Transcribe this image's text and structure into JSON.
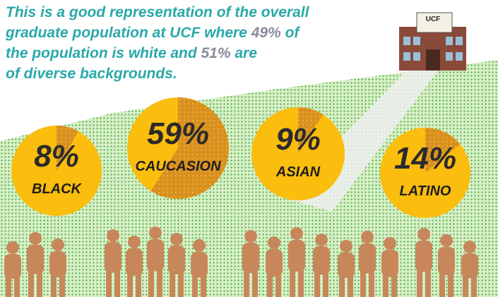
{
  "headline": {
    "lines": [
      [
        "This is a good representation of the overall"
      ],
      [
        "graduate population at UCF where ",
        "49%",
        " of"
      ],
      [
        "the population is white and ",
        "51%",
        " are"
      ],
      [
        "of diverse backgrounds."
      ]
    ]
  },
  "logo": "UCF",
  "chart_data": [
    {
      "type": "donut",
      "categories": [
        "BLACK"
      ],
      "values": [
        8
      ],
      "value_labels": [
        "8%"
      ],
      "color": "#d9901c",
      "base_color": "#fbbd0e"
    },
    {
      "type": "donut",
      "categories": [
        "CAUCASION"
      ],
      "values": [
        59
      ],
      "value_labels": [
        "59%"
      ],
      "color": "#d9901c",
      "base_color": "#fbbd0e"
    },
    {
      "type": "donut",
      "categories": [
        "ASIAN"
      ],
      "values": [
        9
      ],
      "value_labels": [
        "9%"
      ],
      "color": "#d9901c",
      "base_color": "#fbbd0e"
    },
    {
      "type": "donut",
      "categories": [
        "LATINO"
      ],
      "values": [
        14
      ],
      "value_labels": [
        "14%"
      ],
      "color": "#d9901c",
      "base_color": "#fbbd0e"
    }
  ]
}
